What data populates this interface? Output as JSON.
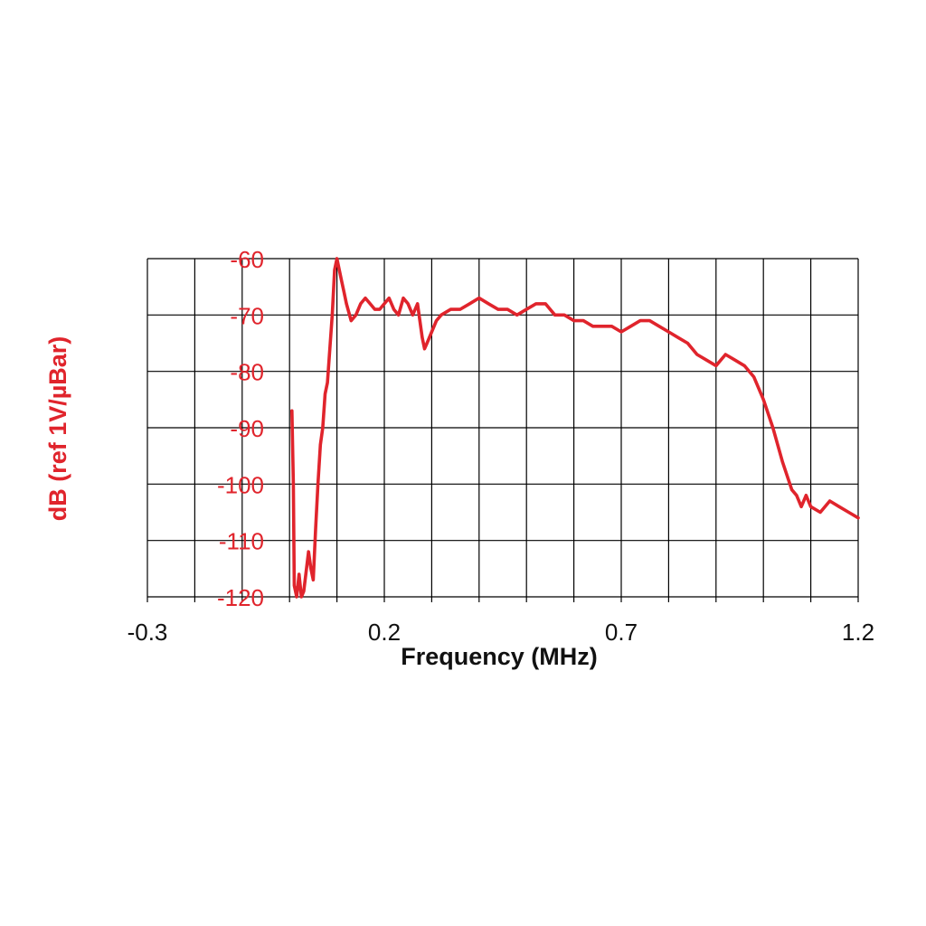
{
  "chart_data": {
    "type": "line",
    "title": "",
    "xlabel": "Frequency (MHz)",
    "ylabel": "dB (ref 1V/µBar)",
    "xlim": [
      -0.3,
      1.2
    ],
    "ylim": [
      -120,
      -60
    ],
    "x_ticks": [
      "-0.3",
      "0.2",
      "0.7",
      "1.2"
    ],
    "y_ticks": [
      "-60",
      "-70",
      "-80",
      "-90",
      "-100",
      "-110",
      "-120"
    ],
    "grid": true,
    "legend": "none",
    "color": "#e0242c",
    "series": [
      {
        "x": [
          0.005,
          0.008,
          0.01,
          0.015,
          0.02,
          0.025,
          0.03,
          0.04,
          0.045,
          0.05,
          0.055,
          0.06,
          0.065,
          0.07,
          0.075,
          0.08,
          0.09,
          0.095,
          0.1,
          0.105,
          0.11,
          0.115,
          0.12,
          0.13,
          0.14,
          0.15,
          0.16,
          0.17,
          0.18,
          0.19,
          0.2,
          0.21,
          0.22,
          0.23,
          0.24,
          0.25,
          0.26,
          0.27,
          0.28,
          0.285,
          0.29,
          0.3,
          0.31,
          0.32,
          0.34,
          0.36,
          0.38,
          0.4,
          0.42,
          0.44,
          0.46,
          0.48,
          0.5,
          0.52,
          0.54,
          0.56,
          0.58,
          0.6,
          0.62,
          0.64,
          0.66,
          0.68,
          0.7,
          0.72,
          0.74,
          0.76,
          0.78,
          0.8,
          0.82,
          0.84,
          0.86,
          0.88,
          0.9,
          0.92,
          0.94,
          0.96,
          0.98,
          1.0,
          1.02,
          1.04,
          1.06,
          1.07,
          1.08,
          1.09,
          1.1,
          1.12,
          1.14,
          1.16,
          1.18,
          1.2
        ],
        "y": [
          -87,
          -100,
          -118,
          -120,
          -116,
          -120,
          -119,
          -112,
          -115,
          -117,
          -108,
          -100,
          -93,
          -90,
          -84,
          -82,
          -70,
          -62,
          -60,
          -62,
          -64,
          -66,
          -68,
          -71,
          -70,
          -68,
          -67,
          -68,
          -69,
          -69,
          -68,
          -67,
          -69,
          -70,
          -67,
          -68,
          -70,
          -68,
          -74,
          -76,
          -75,
          -73,
          -71,
          -70,
          -69,
          -69,
          -68,
          -67,
          -68,
          -69,
          -69,
          -70,
          -69,
          -68,
          -68,
          -70,
          -70,
          -71,
          -71,
          -72,
          -72,
          -72,
          -73,
          -72,
          -71,
          -71,
          -72,
          -73,
          -74,
          -75,
          -77,
          -78,
          -79,
          -77,
          -78,
          -79,
          -81,
          -85,
          -90,
          -96,
          -101,
          -102,
          -104,
          -102,
          -104,
          -105,
          -103,
          -104,
          -105,
          -106
        ]
      }
    ]
  }
}
